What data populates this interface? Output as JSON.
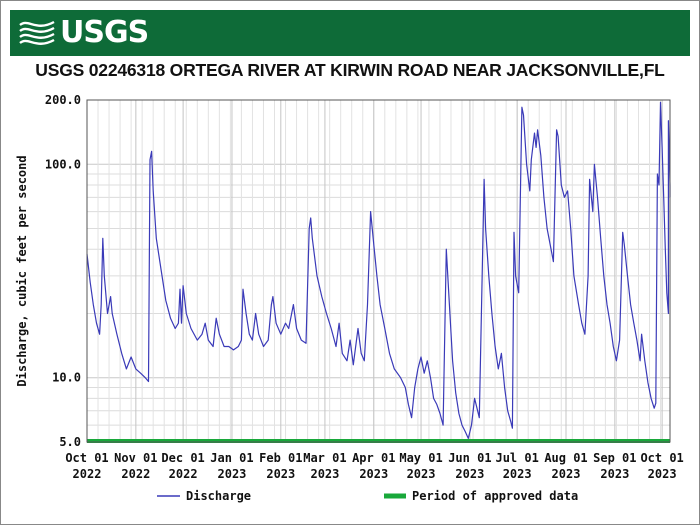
{
  "header": {
    "logo_text": "USGS",
    "logo_icon": "usgs-wave-icon",
    "banner_color": "#0e6b38"
  },
  "chart_data": {
    "type": "line",
    "title": "USGS 02246318 ORTEGA RIVER AT KIRWIN ROAD NEAR JACKSONVILLE,FL",
    "ylabel": "Discharge, cubic feet per second",
    "xlabel": "",
    "y_scale": "log",
    "ylim": [
      5.0,
      200.0
    ],
    "y_ticks": [
      "5.0",
      "10.0",
      "100.0",
      "200.0"
    ],
    "x_ticks": [
      {
        "date": "2022-10-01",
        "line1": "Oct 01",
        "line2": "2022"
      },
      {
        "date": "2022-11-01",
        "line1": "Nov 01",
        "line2": "2022"
      },
      {
        "date": "2022-12-01",
        "line1": "Dec 01",
        "line2": "2022"
      },
      {
        "date": "2023-01-01",
        "line1": "Jan 01",
        "line2": "2023"
      },
      {
        "date": "2023-02-01",
        "line1": "Feb 01",
        "line2": "2023"
      },
      {
        "date": "2023-03-01",
        "line1": "Mar 01",
        "line2": "2023"
      },
      {
        "date": "2023-04-01",
        "line1": "Apr 01",
        "line2": "2023"
      },
      {
        "date": "2023-05-01",
        "line1": "May 01",
        "line2": "2023"
      },
      {
        "date": "2023-06-01",
        "line1": "Jun 01",
        "line2": "2023"
      },
      {
        "date": "2023-07-01",
        "line1": "Jul 01",
        "line2": "2023"
      },
      {
        "date": "2023-08-01",
        "line1": "Aug 01",
        "line2": "2023"
      },
      {
        "date": "2023-09-01",
        "line1": "Sep 01",
        "line2": "2023"
      },
      {
        "date": "2023-10-01",
        "line1": "Oct 01",
        "line2": "2023"
      }
    ],
    "xlim": [
      "2022-10-01",
      "2023-10-06"
    ],
    "grid": true,
    "legend_position": "bottom",
    "series": [
      {
        "name": "Discharge",
        "color": "#3a3ab8",
        "points": [
          [
            "2022-10-01",
            38
          ],
          [
            "2022-10-03",
            28
          ],
          [
            "2022-10-05",
            22
          ],
          [
            "2022-10-07",
            18
          ],
          [
            "2022-10-09",
            16
          ],
          [
            "2022-10-10",
            22
          ],
          [
            "2022-10-11",
            45
          ],
          [
            "2022-10-12",
            30
          ],
          [
            "2022-10-14",
            20
          ],
          [
            "2022-10-16",
            24
          ],
          [
            "2022-10-17",
            20
          ],
          [
            "2022-10-20",
            16
          ],
          [
            "2022-10-23",
            13
          ],
          [
            "2022-10-26",
            11
          ],
          [
            "2022-10-29",
            12.5
          ],
          [
            "2022-11-01",
            11
          ],
          [
            "2022-11-04",
            10.5
          ],
          [
            "2022-11-07",
            10
          ],
          [
            "2022-11-09",
            9.6
          ],
          [
            "2022-11-10",
            105
          ],
          [
            "2022-11-11",
            115
          ],
          [
            "2022-11-12",
            75
          ],
          [
            "2022-11-14",
            45
          ],
          [
            "2022-11-17",
            32
          ],
          [
            "2022-11-20",
            23
          ],
          [
            "2022-11-23",
            19
          ],
          [
            "2022-11-26",
            17
          ],
          [
            "2022-11-28",
            18
          ],
          [
            "2022-11-29",
            26
          ],
          [
            "2022-11-30",
            18
          ],
          [
            "2022-12-01",
            27
          ],
          [
            "2022-12-03",
            20
          ],
          [
            "2022-12-06",
            17
          ],
          [
            "2022-12-10",
            15
          ],
          [
            "2022-12-13",
            16
          ],
          [
            "2022-12-15",
            18
          ],
          [
            "2022-12-17",
            15
          ],
          [
            "2022-12-20",
            14
          ],
          [
            "2022-12-22",
            19
          ],
          [
            "2022-12-24",
            16
          ],
          [
            "2022-12-27",
            14
          ],
          [
            "2022-12-30",
            14
          ],
          [
            "2023-01-02",
            13.5
          ],
          [
            "2023-01-05",
            14
          ],
          [
            "2023-01-07",
            15
          ],
          [
            "2023-01-08",
            26
          ],
          [
            "2023-01-10",
            20
          ],
          [
            "2023-01-12",
            16
          ],
          [
            "2023-01-14",
            15
          ],
          [
            "2023-01-16",
            20
          ],
          [
            "2023-01-18",
            16
          ],
          [
            "2023-01-21",
            14
          ],
          [
            "2023-01-24",
            15
          ],
          [
            "2023-01-26",
            22
          ],
          [
            "2023-01-27",
            24
          ],
          [
            "2023-01-29",
            18
          ],
          [
            "2023-02-01",
            16
          ],
          [
            "2023-02-04",
            18
          ],
          [
            "2023-02-06",
            17
          ],
          [
            "2023-02-09",
            22
          ],
          [
            "2023-02-11",
            17
          ],
          [
            "2023-02-14",
            15
          ],
          [
            "2023-02-17",
            14.5
          ],
          [
            "2023-02-19",
            50
          ],
          [
            "2023-02-20",
            56
          ],
          [
            "2023-02-21",
            45
          ],
          [
            "2023-02-24",
            30
          ],
          [
            "2023-02-27",
            24
          ],
          [
            "2023-03-02",
            20
          ],
          [
            "2023-03-05",
            17
          ],
          [
            "2023-03-08",
            14
          ],
          [
            "2023-03-10",
            18
          ],
          [
            "2023-03-12",
            13
          ],
          [
            "2023-03-15",
            12
          ],
          [
            "2023-03-17",
            15
          ],
          [
            "2023-03-19",
            11.5
          ],
          [
            "2023-03-22",
            17
          ],
          [
            "2023-03-24",
            13
          ],
          [
            "2023-03-26",
            12
          ],
          [
            "2023-03-28",
            22
          ],
          [
            "2023-03-30",
            60
          ],
          [
            "2023-04-01",
            42
          ],
          [
            "2023-04-03",
            30
          ],
          [
            "2023-04-05",
            22
          ],
          [
            "2023-04-08",
            17
          ],
          [
            "2023-04-11",
            13
          ],
          [
            "2023-04-14",
            11
          ],
          [
            "2023-04-18",
            10
          ],
          [
            "2023-04-21",
            9
          ],
          [
            "2023-04-23",
            7.5
          ],
          [
            "2023-04-25",
            6.5
          ],
          [
            "2023-04-27",
            9
          ],
          [
            "2023-04-29",
            11
          ],
          [
            "2023-05-01",
            12.5
          ],
          [
            "2023-05-03",
            10.5
          ],
          [
            "2023-05-05",
            12
          ],
          [
            "2023-05-07",
            10
          ],
          [
            "2023-05-09",
            8
          ],
          [
            "2023-05-11",
            7.5
          ],
          [
            "2023-05-13",
            6.8
          ],
          [
            "2023-05-15",
            6
          ],
          [
            "2023-05-17",
            40
          ],
          [
            "2023-05-19",
            22
          ],
          [
            "2023-05-21",
            12
          ],
          [
            "2023-05-23",
            8.5
          ],
          [
            "2023-05-25",
            6.8
          ],
          [
            "2023-05-27",
            6
          ],
          [
            "2023-05-29",
            5.6
          ],
          [
            "2023-05-31",
            5.2
          ],
          [
            "2023-06-02",
            6
          ],
          [
            "2023-06-04",
            8
          ],
          [
            "2023-06-07",
            6.5
          ],
          [
            "2023-06-10",
            85
          ],
          [
            "2023-06-11",
            50
          ],
          [
            "2023-06-13",
            30
          ],
          [
            "2023-06-15",
            20
          ],
          [
            "2023-06-17",
            14
          ],
          [
            "2023-06-19",
            11
          ],
          [
            "2023-06-21",
            13
          ],
          [
            "2023-06-23",
            9
          ],
          [
            "2023-06-25",
            7
          ],
          [
            "2023-06-27",
            6.2
          ],
          [
            "2023-06-28",
            5.8
          ],
          [
            "2023-06-29",
            48
          ],
          [
            "2023-06-30",
            30
          ],
          [
            "2023-07-02",
            25
          ],
          [
            "2023-07-04",
            185
          ],
          [
            "2023-07-05",
            170
          ],
          [
            "2023-07-07",
            100
          ],
          [
            "2023-07-09",
            75
          ],
          [
            "2023-07-10",
            105
          ],
          [
            "2023-07-12",
            140
          ],
          [
            "2023-07-13",
            120
          ],
          [
            "2023-07-14",
            145
          ],
          [
            "2023-07-16",
            110
          ],
          [
            "2023-07-18",
            70
          ],
          [
            "2023-07-20",
            50
          ],
          [
            "2023-07-22",
            42
          ],
          [
            "2023-07-24",
            35
          ],
          [
            "2023-07-26",
            145
          ],
          [
            "2023-07-27",
            135
          ],
          [
            "2023-07-29",
            80
          ],
          [
            "2023-07-31",
            70
          ],
          [
            "2023-08-02",
            75
          ],
          [
            "2023-08-04",
            50
          ],
          [
            "2023-08-06",
            30
          ],
          [
            "2023-08-09",
            22
          ],
          [
            "2023-08-11",
            18
          ],
          [
            "2023-08-13",
            16
          ],
          [
            "2023-08-15",
            30
          ],
          [
            "2023-08-16",
            85
          ],
          [
            "2023-08-18",
            60
          ],
          [
            "2023-08-19",
            100
          ],
          [
            "2023-08-21",
            70
          ],
          [
            "2023-08-23",
            45
          ],
          [
            "2023-08-25",
            30
          ],
          [
            "2023-08-27",
            22
          ],
          [
            "2023-08-29",
            18
          ],
          [
            "2023-08-31",
            14
          ],
          [
            "2023-09-02",
            12
          ],
          [
            "2023-09-04",
            15
          ],
          [
            "2023-09-06",
            48
          ],
          [
            "2023-09-07",
            42
          ],
          [
            "2023-09-09",
            30
          ],
          [
            "2023-09-11",
            22
          ],
          [
            "2023-09-13",
            18
          ],
          [
            "2023-09-15",
            15
          ],
          [
            "2023-09-17",
            12
          ],
          [
            "2023-09-18",
            16
          ],
          [
            "2023-09-20",
            12
          ],
          [
            "2023-09-22",
            9.5
          ],
          [
            "2023-09-24",
            8
          ],
          [
            "2023-09-26",
            7.2
          ],
          [
            "2023-09-27",
            7.6
          ],
          [
            "2023-09-28",
            90
          ],
          [
            "2023-09-29",
            80
          ],
          [
            "2023-09-30",
            195
          ],
          [
            "2023-10-01",
            120
          ],
          [
            "2023-10-02",
            70
          ],
          [
            "2023-10-03",
            40
          ],
          [
            "2023-10-04",
            25
          ],
          [
            "2023-10-05",
            20
          ],
          [
            "2023-10-05",
            160
          ],
          [
            "2023-10-06",
            80
          ],
          [
            "2023-10-06",
            70
          ]
        ]
      },
      {
        "name": "Period of approved data",
        "color": "#18a83a",
        "span": [
          "2022-10-01",
          "2023-10-06"
        ],
        "y": 5.0
      }
    ]
  }
}
